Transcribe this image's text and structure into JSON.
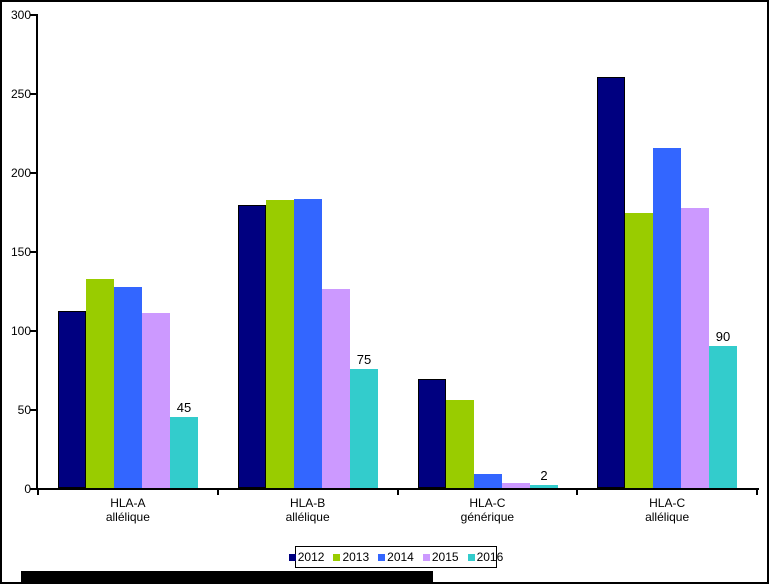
{
  "canvas": {
    "background": "#FFFFFF",
    "frame_color": "#000000"
  },
  "chart_data": {
    "type": "bar",
    "title": "",
    "xlabel": "",
    "ylabel": "",
    "categories": [
      "HLA-A\nallélique",
      "HLA-B\nallélique",
      "HLA-C\ngénérique",
      "HLA-C\nallélique"
    ],
    "series": [
      {
        "name": "2012",
        "color": "#000080",
        "values": [
          112,
          179,
          69,
          260
        ]
      },
      {
        "name": "2013",
        "color": "#99CC00",
        "values": [
          132,
          182,
          56,
          174
        ]
      },
      {
        "name": "2014",
        "color": "#3366FF",
        "values": [
          127,
          183,
          9,
          215
        ]
      },
      {
        "name": "2015",
        "color": "#CC99FF",
        "values": [
          111,
          126,
          3,
          177
        ]
      },
      {
        "name": "2016",
        "color": "#33CCCC",
        "values": [
          45,
          75,
          2,
          90
        ],
        "data_labels": [
          "45",
          "75",
          "2",
          "90"
        ]
      }
    ],
    "ylim": [
      0,
      300
    ],
    "y_ticks": [
      0,
      50,
      100,
      150,
      200,
      250,
      300
    ],
    "grid": false,
    "legend_position": "bottom",
    "plot_background": "#FFFFFF",
    "text_color": "#000000"
  }
}
